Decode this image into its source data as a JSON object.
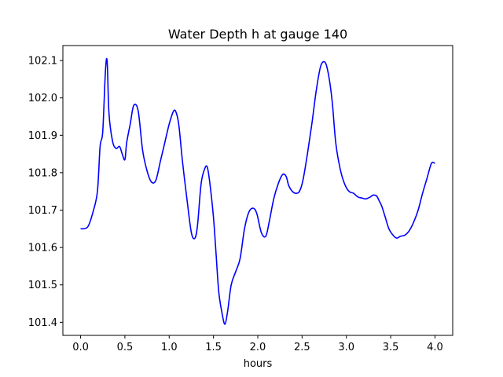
{
  "chart_data": {
    "type": "line",
    "title": "Water Depth h at gauge 140",
    "xlabel": "hours",
    "ylabel": "",
    "xlim": [
      -0.2,
      4.2
    ],
    "ylim": [
      101.365,
      102.14
    ],
    "xticks": [
      0.0,
      0.5,
      1.0,
      1.5,
      2.0,
      2.5,
      3.0,
      3.5,
      4.0
    ],
    "xtick_labels": [
      "0.0",
      "0.5",
      "1.0",
      "1.5",
      "2.0",
      "2.5",
      "3.0",
      "3.5",
      "4.0"
    ],
    "yticks": [
      101.4,
      101.5,
      101.6,
      101.7,
      101.8,
      101.9,
      102.0,
      102.1
    ],
    "ytick_labels": [
      "101.4",
      "101.5",
      "101.6",
      "101.7",
      "101.8",
      "101.9",
      "102.0",
      "102.1"
    ],
    "grid": false,
    "series": [
      {
        "color": "#0000ff",
        "x": [
          0.0,
          0.08,
          0.14,
          0.19,
          0.22,
          0.25,
          0.28,
          0.3,
          0.32,
          0.36,
          0.4,
          0.44,
          0.47,
          0.5,
          0.52,
          0.56,
          0.6,
          0.65,
          0.7,
          0.75,
          0.8,
          0.85,
          0.9,
          0.95,
          1.0,
          1.05,
          1.08,
          1.11,
          1.15,
          1.2,
          1.25,
          1.29,
          1.32,
          1.36,
          1.4,
          1.43,
          1.46,
          1.5,
          1.53,
          1.56,
          1.6,
          1.63,
          1.66,
          1.7,
          1.75,
          1.8,
          1.85,
          1.9,
          1.95,
          1.99,
          2.04,
          2.09,
          2.13,
          2.18,
          2.23,
          2.28,
          2.32,
          2.35,
          2.39,
          2.43,
          2.47,
          2.51,
          2.56,
          2.61,
          2.66,
          2.71,
          2.76,
          2.8,
          2.84,
          2.88,
          2.93,
          2.98,
          3.03,
          3.08,
          3.13,
          3.18,
          3.22,
          3.27,
          3.3,
          3.34,
          3.37,
          3.4,
          3.44,
          3.48,
          3.53,
          3.57,
          3.61,
          3.66,
          3.71,
          3.76,
          3.81,
          3.86,
          3.91,
          3.96,
          4.0
        ],
        "values": [
          101.65,
          101.655,
          101.695,
          101.75,
          101.87,
          101.91,
          102.07,
          102.097,
          101.96,
          101.885,
          101.865,
          101.87,
          101.85,
          101.835,
          101.88,
          101.93,
          101.98,
          101.965,
          101.86,
          101.805,
          101.775,
          101.78,
          101.83,
          101.88,
          101.93,
          101.965,
          101.96,
          101.925,
          101.83,
          101.73,
          101.64,
          101.625,
          101.66,
          101.77,
          101.81,
          101.815,
          101.77,
          101.68,
          101.58,
          101.48,
          101.42,
          101.395,
          101.43,
          101.5,
          101.535,
          101.57,
          101.65,
          101.695,
          101.705,
          101.69,
          101.64,
          101.63,
          101.67,
          101.73,
          101.77,
          101.795,
          101.79,
          101.765,
          101.75,
          101.745,
          101.75,
          101.78,
          101.85,
          101.93,
          102.02,
          102.085,
          102.095,
          102.06,
          101.99,
          101.88,
          101.81,
          101.77,
          101.75,
          101.745,
          101.735,
          101.732,
          101.73,
          101.735,
          101.74,
          101.738,
          101.725,
          101.71,
          101.68,
          101.65,
          101.632,
          101.625,
          101.63,
          101.633,
          101.645,
          101.668,
          101.7,
          101.745,
          101.785,
          101.825,
          101.825
        ]
      }
    ]
  }
}
